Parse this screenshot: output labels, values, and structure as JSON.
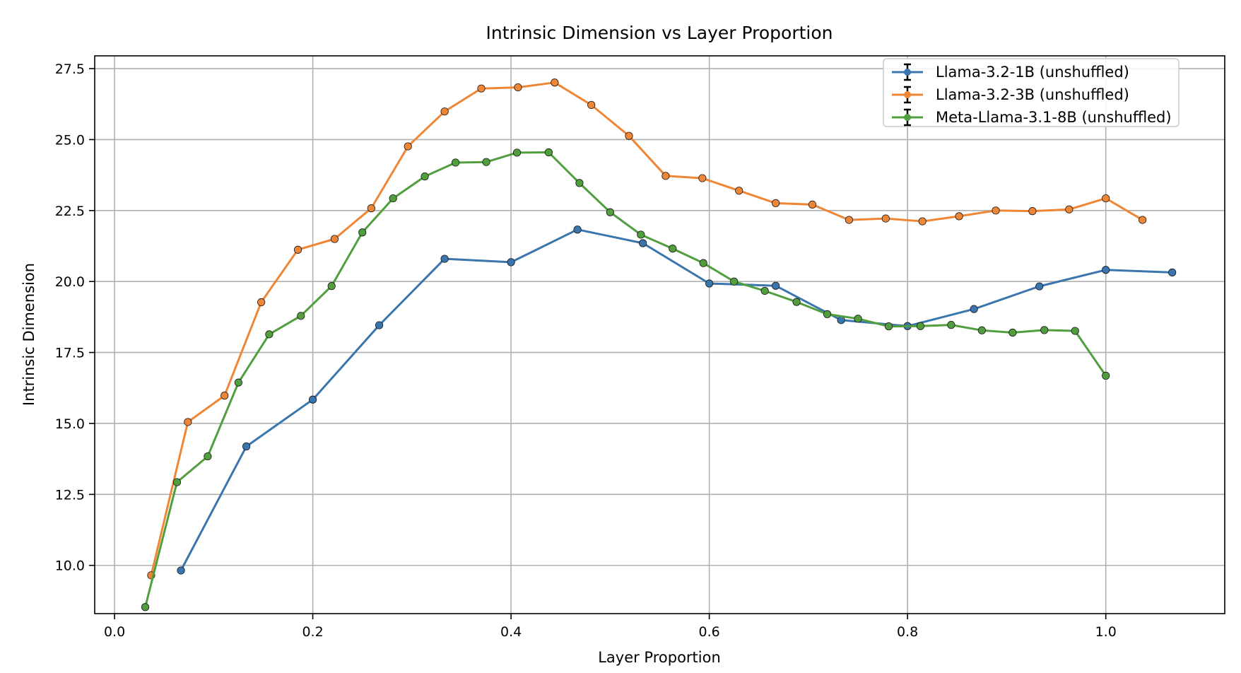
{
  "chart_data": {
    "type": "line",
    "title": "Intrinsic Dimension vs Layer Proportion",
    "xlabel": "Layer Proportion",
    "ylabel": "Intrinsic Dimension",
    "xlim": [
      -0.02,
      1.12
    ],
    "ylim": [
      8.3,
      27.95
    ],
    "xticks": [
      0.0,
      0.2,
      0.4,
      0.6,
      0.8,
      1.0
    ],
    "xtick_labels": [
      "0.0",
      "0.2",
      "0.4",
      "0.6",
      "0.8",
      "1.0"
    ],
    "yticks": [
      10.0,
      12.5,
      15.0,
      17.5,
      20.0,
      22.5,
      25.0,
      27.5
    ],
    "ytick_labels": [
      "10.0",
      "12.5",
      "15.0",
      "17.5",
      "20.0",
      "22.5",
      "25.0",
      "27.5"
    ],
    "grid": true,
    "legend_position": "top-right",
    "error_bars": true,
    "series": [
      {
        "name": "Llama-3.2-1B (unshuffled)",
        "color": "#3a75ae",
        "x": [
          0.067,
          0.133,
          0.2,
          0.267,
          0.333,
          0.4,
          0.467,
          0.533,
          0.6,
          0.667,
          0.733,
          0.8,
          0.867,
          0.933,
          1.0,
          1.067
        ],
        "y": [
          9.82,
          14.19,
          15.84,
          18.46,
          20.8,
          20.68,
          21.83,
          21.35,
          19.93,
          19.85,
          18.64,
          18.43,
          19.03,
          19.83,
          20.41,
          20.32
        ]
      },
      {
        "name": "Llama-3.2-3B (unshuffled)",
        "color": "#ef8636",
        "x": [
          0.037,
          0.074,
          0.111,
          0.148,
          0.185,
          0.222,
          0.259,
          0.296,
          0.333,
          0.37,
          0.407,
          0.444,
          0.481,
          0.519,
          0.556,
          0.593,
          0.63,
          0.667,
          0.704,
          0.741,
          0.778,
          0.815,
          0.852,
          0.889,
          0.926,
          0.963,
          1.0,
          1.037
        ],
        "y": [
          9.65,
          15.05,
          15.98,
          19.27,
          21.12,
          21.5,
          22.58,
          24.76,
          25.99,
          26.8,
          26.84,
          27.01,
          26.22,
          25.13,
          23.72,
          23.64,
          23.2,
          22.76,
          22.71,
          22.17,
          22.22,
          22.12,
          22.3,
          22.5,
          22.48,
          22.54,
          22.93,
          22.17
        ]
      },
      {
        "name": "Meta-Llama-3.1-8B (unshuffled)",
        "color": "#519e3e",
        "x": [
          0.031,
          0.063,
          0.094,
          0.125,
          0.156,
          0.188,
          0.219,
          0.25,
          0.281,
          0.313,
          0.344,
          0.375,
          0.406,
          0.438,
          0.469,
          0.5,
          0.531,
          0.563,
          0.594,
          0.625,
          0.656,
          0.688,
          0.719,
          0.75,
          0.781,
          0.813,
          0.844,
          0.875,
          0.906,
          0.938,
          0.969,
          1.0,
          1.031
        ],
        "y": [
          8.53,
          12.93,
          13.84,
          16.44,
          18.14,
          18.79,
          19.84,
          21.73,
          22.93,
          23.7,
          24.19,
          24.21,
          24.54,
          24.55,
          23.47,
          22.44,
          21.65,
          21.16,
          20.65,
          20.0,
          19.67,
          19.28,
          18.85,
          18.69,
          18.42,
          18.43,
          18.47,
          18.28,
          18.2,
          18.29,
          18.26,
          16.68,
          null
        ]
      }
    ]
  }
}
